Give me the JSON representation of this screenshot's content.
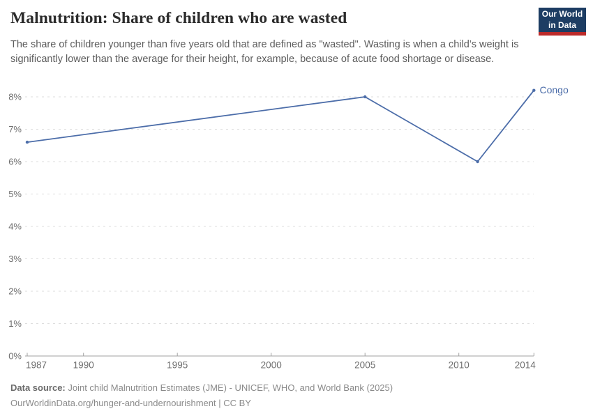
{
  "logo": {
    "line1": "Our World",
    "line2": "in Data",
    "bg_color": "#1d3d63",
    "accent_color": "#bc2b2a"
  },
  "chart_data": {
    "type": "line",
    "title": "Malnutrition: Share of children who are wasted",
    "subtitle": "The share of children younger than five years old that are defined as \"wasted\". Wasting is when a child’s weight is significantly lower than the average for their height, for example, because of acute food shortage or disease.",
    "entity_label": "Congo",
    "series": [
      {
        "name": "Congo",
        "color": "#4c6da9",
        "points": [
          [
            1987,
            6.6
          ],
          [
            2005,
            8.0
          ],
          [
            2011,
            6.0
          ],
          [
            2014,
            8.2
          ]
        ]
      }
    ],
    "x_ticks": [
      {
        "value": 1987,
        "label": "1987"
      },
      {
        "value": 1990,
        "label": "1990"
      },
      {
        "value": 1995,
        "label": "1995"
      },
      {
        "value": 2000,
        "label": "2000"
      },
      {
        "value": 2005,
        "label": "2005"
      },
      {
        "value": 2010,
        "label": "2010"
      },
      {
        "value": 2014,
        "label": "2014"
      }
    ],
    "y_ticks": [
      {
        "value": 0,
        "label": "0%"
      },
      {
        "value": 1,
        "label": "1%"
      },
      {
        "value": 2,
        "label": "2%"
      },
      {
        "value": 3,
        "label": "3%"
      },
      {
        "value": 4,
        "label": "4%"
      },
      {
        "value": 5,
        "label": "5%"
      },
      {
        "value": 6,
        "label": "6%"
      },
      {
        "value": 7,
        "label": "7%"
      },
      {
        "value": 8,
        "label": "8%"
      }
    ],
    "xlim": [
      1987,
      2014
    ],
    "ylim": [
      0,
      8.6
    ],
    "grid": "horizontal-dashed",
    "legend_position": "end-of-line",
    "grid_color": "#dcdcdc",
    "axis_color": "#a1a1a1",
    "tick_label_color": "#6e6e6e"
  },
  "footer": {
    "datasource_label": "Data source:",
    "datasource_text": " Joint child Malnutrition Estimates (JME) - UNICEF, WHO, and World Bank (2025)",
    "link_line": "OurWorldinData.org/hunger-and-undernourishment | CC BY"
  }
}
